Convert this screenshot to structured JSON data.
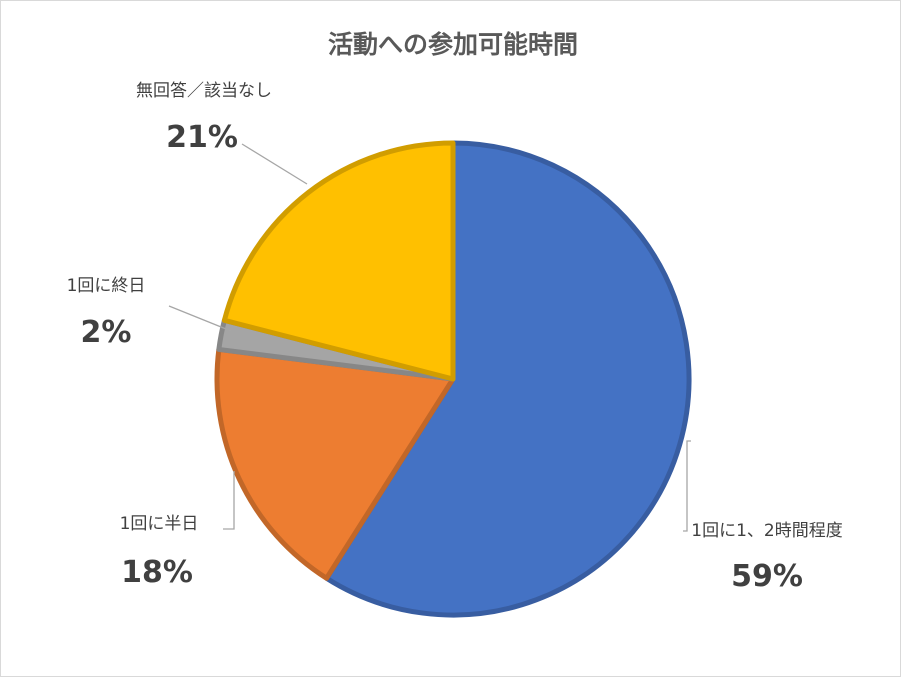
{
  "chart_data": {
    "type": "pie",
    "title": "活動への参加可能時間",
    "slices": [
      {
        "label": "1回に1、2時間程度",
        "value": 59,
        "display": "59%",
        "color": "#4472C4"
      },
      {
        "label": "1回に半日",
        "value": 18,
        "display": "18%",
        "color": "#ED7D31"
      },
      {
        "label": "1回に終日",
        "value": 2,
        "display": "2%",
        "color": "#A5A5A5"
      },
      {
        "label": "無回答／該当なし",
        "value": 21,
        "display": "21%",
        "color": "#FFC000"
      }
    ],
    "start_angle_deg": 0,
    "direction": "clockwise",
    "legend": "none",
    "data_labels": "outside with leader lines"
  }
}
